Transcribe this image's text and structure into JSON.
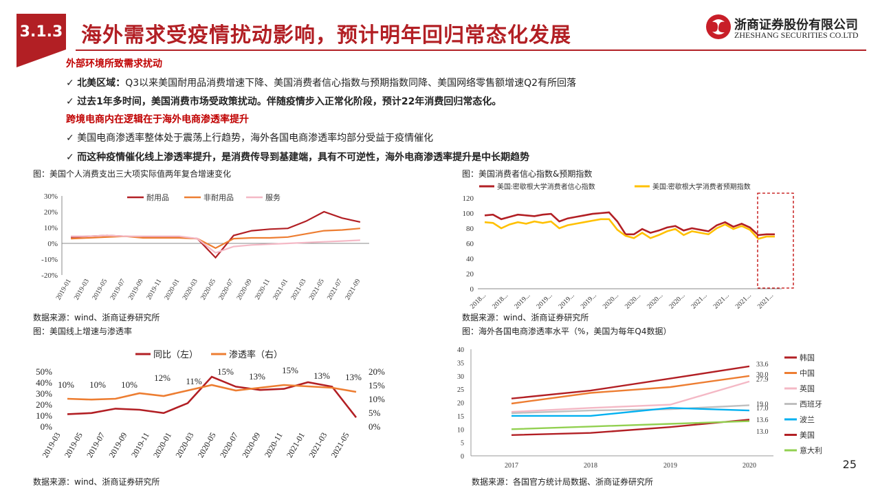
{
  "section": "3.1.3",
  "title": "海外需求受疫情扰动影响，预计明年回归常态化发展",
  "logo": {
    "cn": "浙商证券股份有限公司",
    "en": "ZHESHANG SECURITIES CO.LTD"
  },
  "heading1": "外部环境所致需求扰动",
  "b1_bold": "北美区域：",
  "b1_rest": "Q3以来美国耐用品消费增速下降、美国消费者信心指数与预期指数同降、美国网络零售额增速Q2有所回落",
  "b2": "过去1年多时间，美国消费市场受政策扰动。伴随疫情步入正常化阶段，预计22年消费回归常态化。",
  "heading2": "跨境电商内在逻辑在于海外电商渗透率提升",
  "b3": "美国电商渗透率整体处于震荡上行趋势，海外各国电商渗透率均部分受益于疫情催化",
  "b4": "而这种疫情催化线上渗透率提升，是消费传导到基建端，具有不可逆性，海外电商渗透率提升是中长期趋势",
  "check": "✓",
  "page_number": "25",
  "colors": {
    "red": "#b21f24",
    "orange": "#ed7d31",
    "pink": "#f4b8c5",
    "yellow": "#ffc000",
    "blue": "#00b0f0",
    "green": "#92d050",
    "gray": "#bfbfbf"
  },
  "charts": {
    "c1": {
      "caption": "图：美国个人消费支出三大项实际值两年复合增速变化",
      "source": "数据来源：wind、浙商证券研究所"
    },
    "c2": {
      "caption": "图：美国消费者信心指数&预期指数",
      "source": "数据来源：wind、浙商证券研究所"
    },
    "c3": {
      "caption": "图：美国线上增速与渗透率",
      "source": "数据来源：wind、浙商证券研究所"
    },
    "c4": {
      "caption": "图：海外各国电商渗透率水平（%，美国为每年Q4数据）",
      "source": "数据来源：各国官方统计局数据、浙商证券研究所"
    }
  },
  "chart_data": [
    {
      "type": "line",
      "ylim": [
        -20,
        30
      ],
      "yticks": [
        "30%",
        "20%",
        "10%",
        "0%",
        "-10%",
        "-20%"
      ],
      "x": [
        "2019-01",
        "2019-03",
        "2019-05",
        "2019-07",
        "2019-09",
        "2019-11",
        "2020-01",
        "2020-03",
        "2020-05",
        "2020-07",
        "2020-09",
        "2020-11",
        "2021-01",
        "2021-03",
        "2021-05",
        "2021-07",
        "2021-09"
      ],
      "series": [
        {
          "name": "耐用品",
          "color": "#b21f24",
          "values": [
            4,
            4.5,
            5,
            4.5,
            4,
            4,
            4,
            3,
            -9,
            5,
            8,
            9,
            9.5,
            14,
            20,
            16,
            13.5
          ]
        },
        {
          "name": "非耐用品",
          "color": "#ed7d31",
          "values": [
            3,
            3.5,
            4,
            4.5,
            3.5,
            3.5,
            3.5,
            3,
            -3,
            3,
            3.5,
            3.5,
            4,
            6,
            8,
            8.5,
            9.5
          ]
        },
        {
          "name": "服务",
          "color": "#f4b8c5",
          "values": [
            4.5,
            4.5,
            5,
            4.5,
            4.5,
            4.5,
            4.5,
            3,
            -6,
            -2,
            -1,
            -0.5,
            0,
            0.5,
            1,
            1.5,
            2
          ]
        }
      ]
    },
    {
      "type": "line",
      "ylim": [
        0,
        120
      ],
      "yticks": [
        "120",
        "100",
        "80",
        "60",
        "40",
        "20",
        "0"
      ],
      "xticks": [
        "2018...",
        "2018...",
        "2019...",
        "2019...",
        "2019...",
        "2019...",
        "2020...",
        "2020...",
        "2020...",
        "2020...",
        "2021...",
        "2021...",
        "2021...",
        "2021..."
      ],
      "series": [
        {
          "name": "美国:密歇根大学消费者信心指数",
          "color": "#b21f24",
          "values": [
            97,
            98,
            92,
            95,
            98,
            97,
            96,
            98,
            99,
            89,
            93,
            95,
            97,
            99,
            100,
            101,
            89,
            72,
            72,
            79,
            74,
            77,
            81,
            83,
            77,
            80,
            78,
            76,
            84,
            88,
            82,
            86,
            81,
            71,
            72,
            72
          ]
        },
        {
          "name": "美国:密歇根大学消费者预期指数",
          "color": "#ffc000",
          "values": [
            88,
            87,
            80,
            85,
            88,
            86,
            89,
            87,
            89,
            80,
            84,
            86,
            88,
            90,
            92,
            92,
            78,
            70,
            67,
            74,
            67,
            71,
            76,
            79,
            71,
            76,
            74,
            72,
            80,
            85,
            79,
            83,
            78,
            66,
            69,
            69
          ]
        }
      ]
    },
    {
      "type": "line",
      "xticks": [
        "2019-03",
        "2019-05",
        "2019-07",
        "2019-09",
        "2019-11",
        "2020-01",
        "2020-03",
        "2020-05",
        "2020-07",
        "2020-09",
        "2020-11",
        "2021-01",
        "2021-03",
        "2021-05"
      ],
      "left_ylim": [
        0,
        50
      ],
      "left_ticks": [
        "50%",
        "40%",
        "30%",
        "20%",
        "10%",
        "0%"
      ],
      "right_ylim": [
        0,
        20
      ],
      "right_ticks": [
        "20%",
        "15%",
        "10%",
        "5%",
        "0%"
      ],
      "series": [
        {
          "name": "同比（左）",
          "color": "#b21f24",
          "axis": "left",
          "values": [
            11,
            12,
            16,
            15,
            12,
            21,
            45,
            36,
            33,
            34,
            40,
            36,
            8
          ]
        },
        {
          "name": "渗透率（右）",
          "color": "#ed7d31",
          "axis": "right",
          "values": [
            10,
            9.7,
            10,
            12,
            11,
            13,
            15,
            13,
            14,
            15,
            14.5,
            14,
            12.5
          ]
        }
      ],
      "data_labels": [
        "10%",
        "10%",
        "10%",
        "12%",
        "11%",
        "15%",
        "13%",
        "15%",
        "13%",
        "13%"
      ]
    },
    {
      "type": "line",
      "ylim": [
        0,
        40
      ],
      "yticks": [
        "40",
        "35",
        "30",
        "25",
        "20",
        "15",
        "10",
        "5",
        "0"
      ],
      "x": [
        "2017",
        "2018",
        "2019",
        "2020"
      ],
      "series": [
        {
          "name": "韩国",
          "color": "#b21f24",
          "values": [
            21.5,
            24.5,
            29,
            33.6
          ],
          "label": "33.6"
        },
        {
          "name": "中国",
          "color": "#ed7d31",
          "values": [
            19.6,
            23.6,
            25.8,
            30.0
          ],
          "label": "30.0"
        },
        {
          "name": "英国",
          "color": "#f4b8c5",
          "values": [
            16.5,
            18.0,
            19.2,
            27.9
          ],
          "label": "27.9"
        },
        {
          "name": "西班牙",
          "color": "#bfbfbf",
          "values": [
            16.0,
            17.0,
            17.5,
            19.0
          ],
          "label": "19.0"
        },
        {
          "name": "波兰",
          "color": "#00b0f0",
          "values": [
            15.0,
            15.0,
            18.0,
            17.0
          ],
          "label": "17.0"
        },
        {
          "name": "美国",
          "color": "#b21f24",
          "values": [
            7.8,
            8.6,
            10.8,
            13.6
          ],
          "label": "13.6"
        },
        {
          "name": "意大利",
          "color": "#92d050",
          "values": [
            10.0,
            11.0,
            12.0,
            13.0
          ],
          "label": "13.0"
        }
      ]
    }
  ]
}
